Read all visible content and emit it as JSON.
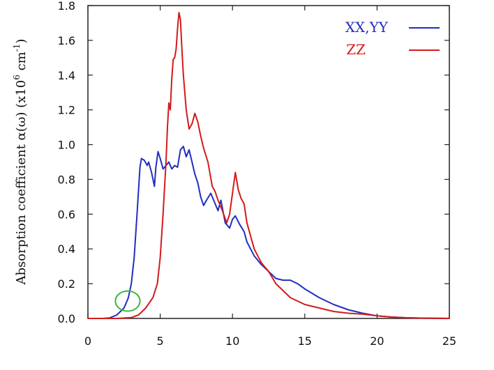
{
  "chart_data": {
    "type": "line",
    "title": "",
    "ylabel": "Absorption coefficient α(ω) (x10⁶ cm⁻¹)",
    "ylabel_parts": {
      "main": "Absorption coefficient α(ω) (x10",
      "sup1": "6",
      "mid": " cm",
      "sup2": "-1",
      "end": ")"
    },
    "xlabel": "",
    "xlim": [
      0,
      25
    ],
    "ylim": [
      0,
      1.8
    ],
    "xticks": [
      "0",
      "5",
      "10",
      "15",
      "20",
      "25"
    ],
    "yticks": [
      "0.0",
      "0.2",
      "0.4",
      "0.6",
      "0.8",
      "1.0",
      "1.2",
      "1.4",
      "1.6",
      "1.8"
    ],
    "grid": false,
    "legend_position": "top-right",
    "series": [
      {
        "name": "XX,YY",
        "color": "#1f2fbf",
        "points": [
          [
            0,
            0
          ],
          [
            1,
            0
          ],
          [
            1.5,
            0.003
          ],
          [
            2,
            0.02
          ],
          [
            2.5,
            0.06
          ],
          [
            2.8,
            0.12
          ],
          [
            3,
            0.2
          ],
          [
            3.2,
            0.35
          ],
          [
            3.4,
            0.6
          ],
          [
            3.6,
            0.87
          ],
          [
            3.7,
            0.92
          ],
          [
            3.9,
            0.91
          ],
          [
            4.1,
            0.88
          ],
          [
            4.2,
            0.9
          ],
          [
            4.4,
            0.84
          ],
          [
            4.6,
            0.76
          ],
          [
            4.7,
            0.87
          ],
          [
            4.85,
            0.96
          ],
          [
            5,
            0.92
          ],
          [
            5.2,
            0.86
          ],
          [
            5.4,
            0.88
          ],
          [
            5.6,
            0.9
          ],
          [
            5.8,
            0.86
          ],
          [
            6,
            0.88
          ],
          [
            6.2,
            0.87
          ],
          [
            6.4,
            0.97
          ],
          [
            6.6,
            0.99
          ],
          [
            6.8,
            0.93
          ],
          [
            7,
            0.97
          ],
          [
            7.2,
            0.9
          ],
          [
            7.4,
            0.83
          ],
          [
            7.6,
            0.78
          ],
          [
            7.8,
            0.7
          ],
          [
            8,
            0.65
          ],
          [
            8.2,
            0.68
          ],
          [
            8.5,
            0.72
          ],
          [
            8.8,
            0.66
          ],
          [
            9,
            0.62
          ],
          [
            9.2,
            0.68
          ],
          [
            9.5,
            0.55
          ],
          [
            9.8,
            0.52
          ],
          [
            10,
            0.57
          ],
          [
            10.2,
            0.59
          ],
          [
            10.5,
            0.54
          ],
          [
            10.8,
            0.5
          ],
          [
            11,
            0.44
          ],
          [
            11.5,
            0.36
          ],
          [
            12,
            0.31
          ],
          [
            12.5,
            0.27
          ],
          [
            13,
            0.23
          ],
          [
            13.5,
            0.22
          ],
          [
            14,
            0.22
          ],
          [
            14.5,
            0.2
          ],
          [
            15,
            0.17
          ],
          [
            16,
            0.12
          ],
          [
            17,
            0.08
          ],
          [
            18,
            0.05
          ],
          [
            19,
            0.03
          ],
          [
            20,
            0.015
          ],
          [
            21,
            0.008
          ],
          [
            22,
            0.004
          ],
          [
            23,
            0.002
          ],
          [
            24,
            0.001
          ],
          [
            25,
            0
          ]
        ]
      },
      {
        "name": "ZZ",
        "color": "#d41a1a",
        "points": [
          [
            0,
            0
          ],
          [
            2,
            0
          ],
          [
            3,
            0.005
          ],
          [
            3.5,
            0.02
          ],
          [
            4,
            0.06
          ],
          [
            4.5,
            0.12
          ],
          [
            4.8,
            0.2
          ],
          [
            5,
            0.35
          ],
          [
            5.2,
            0.6
          ],
          [
            5.4,
            0.9
          ],
          [
            5.5,
            1.1
          ],
          [
            5.6,
            1.24
          ],
          [
            5.7,
            1.2
          ],
          [
            5.8,
            1.38
          ],
          [
            5.9,
            1.49
          ],
          [
            6,
            1.5
          ],
          [
            6.1,
            1.55
          ],
          [
            6.2,
            1.67
          ],
          [
            6.3,
            1.76
          ],
          [
            6.4,
            1.72
          ],
          [
            6.5,
            1.55
          ],
          [
            6.6,
            1.4
          ],
          [
            6.8,
            1.2
          ],
          [
            7,
            1.09
          ],
          [
            7.2,
            1.12
          ],
          [
            7.4,
            1.18
          ],
          [
            7.6,
            1.13
          ],
          [
            7.8,
            1.05
          ],
          [
            8,
            0.98
          ],
          [
            8.3,
            0.9
          ],
          [
            8.6,
            0.76
          ],
          [
            8.8,
            0.73
          ],
          [
            9,
            0.68
          ],
          [
            9.3,
            0.62
          ],
          [
            9.6,
            0.55
          ],
          [
            9.8,
            0.6
          ],
          [
            10,
            0.72
          ],
          [
            10.2,
            0.84
          ],
          [
            10.4,
            0.74
          ],
          [
            10.6,
            0.69
          ],
          [
            10.8,
            0.66
          ],
          [
            11,
            0.55
          ],
          [
            11.5,
            0.4
          ],
          [
            12,
            0.32
          ],
          [
            12.5,
            0.27
          ],
          [
            13,
            0.2
          ],
          [
            13.5,
            0.16
          ],
          [
            14,
            0.12
          ],
          [
            15,
            0.08
          ],
          [
            16,
            0.06
          ],
          [
            17,
            0.04
          ],
          [
            18,
            0.03
          ],
          [
            19,
            0.025
          ],
          [
            20,
            0.015
          ],
          [
            21,
            0.008
          ],
          [
            22,
            0.004
          ],
          [
            23,
            0.002
          ],
          [
            24,
            0.001
          ],
          [
            25,
            0
          ]
        ]
      }
    ],
    "annotations": [
      {
        "type": "ellipse",
        "color": "#3cb83c",
        "cx": 2.75,
        "cy": 0.1,
        "rx": 0.85,
        "ry": 0.058
      }
    ]
  }
}
